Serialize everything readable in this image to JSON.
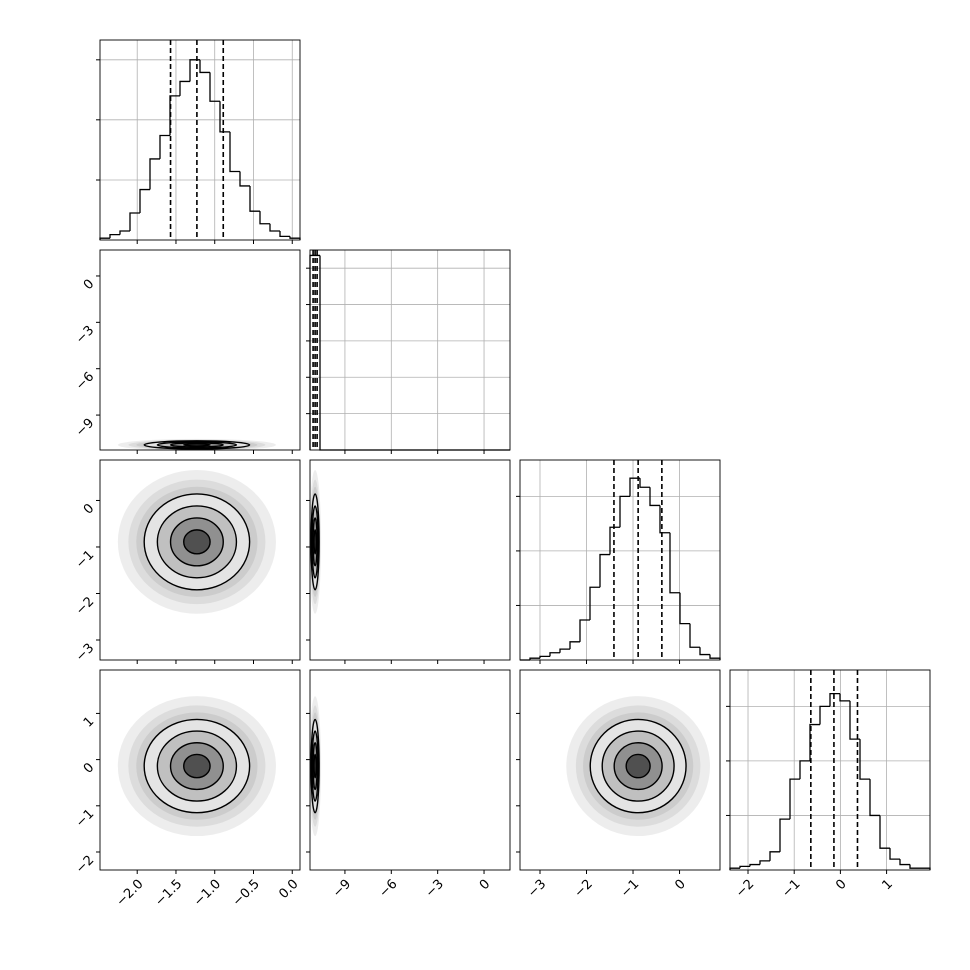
{
  "chart_data": {
    "type": "corner",
    "color": "#000000",
    "grid": true,
    "levels": [
      0.5,
      1,
      1.5,
      2
    ],
    "contour_fills": [
      "#505050",
      "#909090",
      "#c0c0c0",
      "#e4e4e4"
    ],
    "parameters": [
      {
        "xlim": [
          -2.48,
          0.1
        ],
        "xticks": [
          {
            "value": -2,
            "label": "−2.0"
          },
          {
            "value": -1.5,
            "label": "−1.5"
          },
          {
            "value": -1,
            "label": "−1.0"
          },
          {
            "value": -0.5,
            "label": "−0.5"
          },
          {
            "value": 0,
            "label": "0.0"
          }
        ],
        "bins": [
          -2.48,
          -2.351,
          -2.222,
          -2.093,
          -1.964,
          -1.835,
          -1.706,
          -1.577,
          -1.448,
          -1.319,
          -1.19,
          -1.061,
          -0.932,
          -0.803,
          -0.674,
          -0.545,
          -0.416,
          -0.287,
          -0.158,
          -0.029,
          0.1
        ],
        "counts": [
          10,
          30,
          50,
          150,
          280,
          450,
          580,
          800,
          880,
          1000,
          930,
          770,
          600,
          380,
          300,
          160,
          90,
          50,
          20,
          10
        ],
        "hist_ylim": [
          0,
          1110
        ],
        "hist_yticks": [
          333,
          667,
          1000
        ],
        "quantiles": [
          -1.57,
          -1.23,
          -0.89
        ]
      },
      {
        "xlim": [
          -11.26,
          1.68
        ],
        "xticks": [
          {
            "value": -9,
            "label": "−9"
          },
          {
            "value": -6,
            "label": "−6"
          },
          {
            "value": -3,
            "label": "−3"
          },
          0
        ],
        "bins": [
          -11.26,
          -10.613,
          -9.966,
          -9.319,
          -8.672,
          -8.025,
          -7.378,
          -6.731,
          -6.084,
          -5.437,
          -4.79,
          -4.143,
          -3.496,
          -2.849,
          -2.202,
          -1.555,
          -0.908,
          -0.261,
          0.386,
          1.033,
          1.68
        ],
        "counts": [
          10700,
          0,
          0,
          0,
          0,
          0,
          0,
          0,
          0,
          0,
          0,
          0,
          0,
          0,
          0,
          0,
          0,
          0,
          0,
          0
        ],
        "hist_ylim": [
          0,
          11000
        ],
        "hist_yticks": [
          2000,
          4000,
          6000,
          8000,
          10000
        ],
        "quantiles": [
          -11.06,
          -10.93,
          -10.8
        ]
      },
      {
        "xlim": [
          -3.43,
          0.87
        ],
        "xticks": [
          {
            "value": -3,
            "label": "−3"
          },
          {
            "value": -2,
            "label": "−2"
          },
          {
            "value": -1,
            "label": "−1"
          },
          0
        ],
        "bins": [
          -3.43,
          -3.215,
          -3.0,
          -2.785,
          -2.57,
          -2.355,
          -2.14,
          -1.925,
          -1.71,
          -1.495,
          -1.28,
          -1.065,
          -0.85,
          -0.635,
          -0.42,
          -0.205,
          0.01,
          0.225,
          0.44,
          0.655,
          0.87
        ],
        "counts": [
          0,
          10,
          20,
          40,
          60,
          100,
          220,
          400,
          580,
          730,
          900,
          1000,
          950,
          850,
          700,
          370,
          200,
          70,
          30,
          10
        ],
        "hist_ylim": [
          0,
          1100
        ],
        "hist_yticks": [
          300,
          600,
          900
        ],
        "quantiles": [
          -1.41,
          -0.89,
          -0.38
        ]
      },
      {
        "xlim": [
          -2.39,
          1.94
        ],
        "xticks": [
          {
            "value": -2,
            "label": "−2"
          },
          {
            "value": -1,
            "label": "−1"
          },
          0,
          1
        ],
        "bins": [
          -2.39,
          -2.1735,
          -1.957,
          -1.7405,
          -1.524,
          -1.3075,
          -1.091,
          -0.8745,
          -0.658,
          -0.4415,
          -0.225,
          -0.0085,
          0.208,
          0.4245,
          0.641,
          0.8575,
          1.074,
          1.2905,
          1.507,
          1.7235,
          1.94
        ],
        "counts": [
          10,
          20,
          30,
          50,
          100,
          280,
          500,
          600,
          800,
          900,
          970,
          930,
          720,
          500,
          300,
          120,
          60,
          30,
          10,
          10
        ],
        "hist_ylim": [
          0,
          1100
        ],
        "hist_yticks": [
          300,
          600,
          900
        ],
        "quantiles": [
          -0.64,
          -0.14,
          0.37
        ]
      }
    ]
  }
}
